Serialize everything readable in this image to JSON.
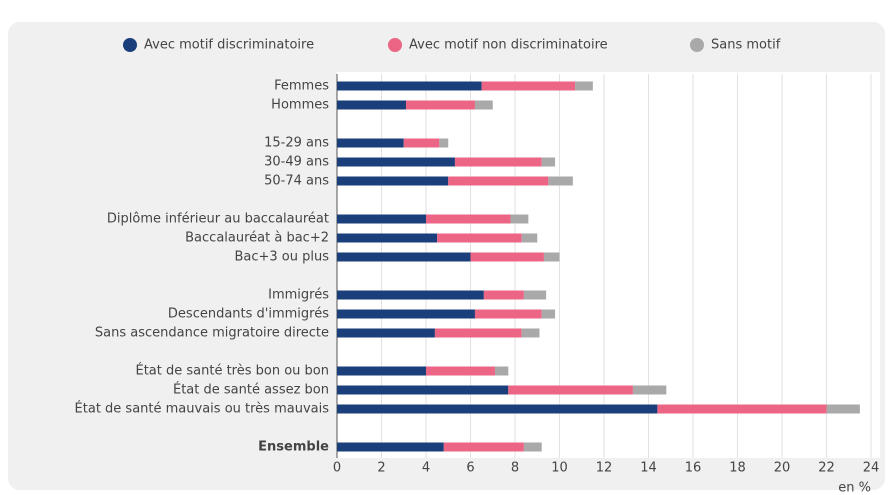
{
  "chart_data": {
    "type": "bar",
    "orientation": "horizontal",
    "stacked": true,
    "categories": [
      "Femmes",
      "Hommes",
      null,
      "15-29 ans",
      "30-49 ans",
      "50-74 ans",
      null,
      "Diplôme inférieur au baccalauréat",
      "Baccalauréat à bac+2",
      "Bac+3 ou plus",
      null,
      "Immigrés",
      "Descendants d'immigrés",
      "Sans ascendance migratoire directe",
      null,
      "État de santé très bon ou bon",
      "État de santé assez bon",
      "État de santé mauvais ou très mauvais",
      null,
      "Ensemble"
    ],
    "emphasized": [
      19
    ],
    "series": [
      {
        "name": "Avec motif discriminatoire",
        "color": "#1b3f7a",
        "values": [
          6.5,
          3.1,
          null,
          3.0,
          5.3,
          5.0,
          null,
          4.0,
          4.5,
          6.0,
          null,
          6.6,
          6.2,
          4.4,
          null,
          4.0,
          7.7,
          14.4,
          null,
          4.8
        ]
      },
      {
        "name": "Avec motif non discriminatoire",
        "color": "#ec6584",
        "values": [
          4.2,
          3.1,
          null,
          1.6,
          3.9,
          4.5,
          null,
          3.8,
          3.8,
          3.3,
          null,
          1.8,
          3.0,
          3.9,
          null,
          3.1,
          5.6,
          7.6,
          null,
          3.6
        ]
      },
      {
        "name": "Sans motif",
        "color": "#a9a9a9",
        "values": [
          0.8,
          0.8,
          null,
          0.4,
          0.6,
          1.1,
          null,
          0.8,
          0.7,
          0.7,
          null,
          1.0,
          0.6,
          0.8,
          null,
          0.6,
          1.5,
          1.5,
          null,
          0.8
        ]
      }
    ],
    "xlabel": "en %",
    "xlim": [
      0,
      24
    ],
    "xticks": [
      0,
      2,
      4,
      6,
      8,
      10,
      12,
      14,
      16,
      18,
      20,
      22,
      24
    ],
    "grid": true
  }
}
